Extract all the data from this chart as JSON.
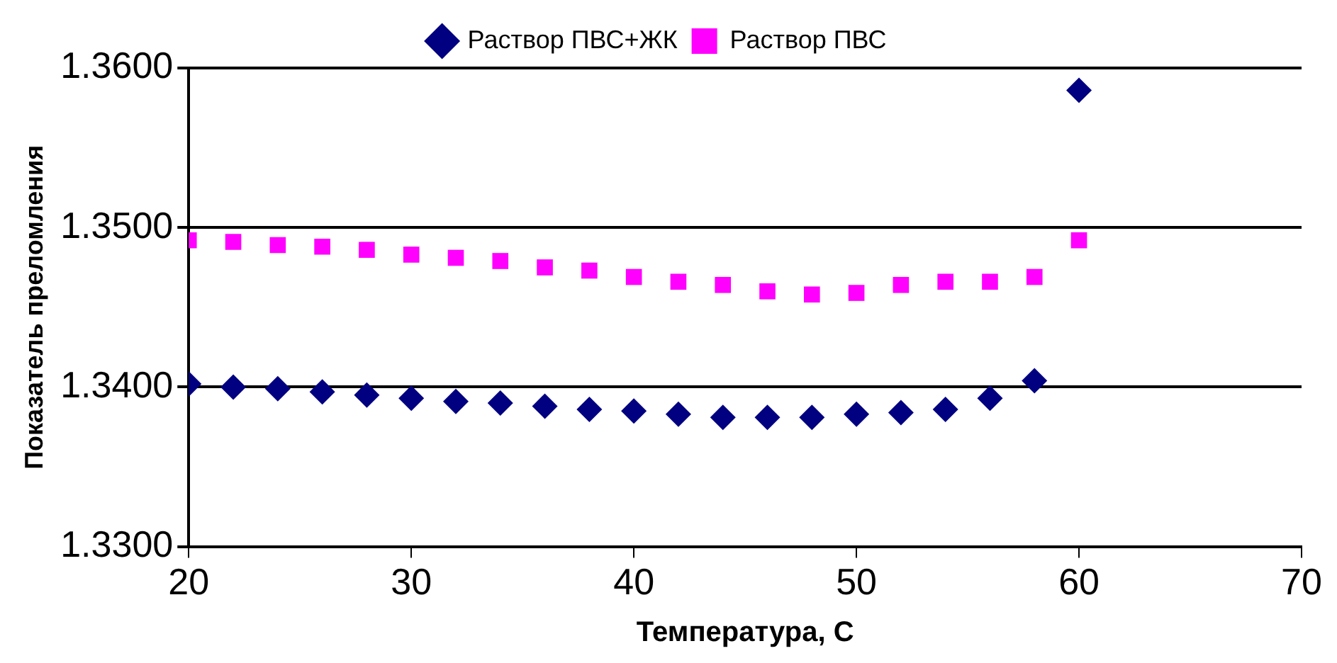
{
  "chart_data": {
    "type": "scatter",
    "xlabel": "Температура, С",
    "ylabel": "Показатель преломления",
    "x": [
      20,
      22,
      24,
      26,
      28,
      30,
      32,
      34,
      36,
      38,
      40,
      42,
      44,
      46,
      48,
      50,
      52,
      54,
      56,
      58,
      60
    ],
    "series": [
      {
        "name": "Раствор ПВС+ЖК",
        "color": "#000080",
        "marker": "diamond",
        "values": [
          1.3402,
          1.34,
          1.3399,
          1.3397,
          1.3395,
          1.3393,
          1.3391,
          1.339,
          1.3388,
          1.3386,
          1.3385,
          1.3383,
          1.3381,
          1.3381,
          1.3381,
          1.3383,
          1.3384,
          1.3386,
          1.3393,
          1.3404,
          1.3586
        ]
      },
      {
        "name": "Раствор ПВС",
        "color": "#ff00ff",
        "marker": "square",
        "values": [
          1.3492,
          1.3491,
          1.3489,
          1.3488,
          1.3486,
          1.3483,
          1.3481,
          1.3479,
          1.3475,
          1.3473,
          1.3469,
          1.3466,
          1.3464,
          1.346,
          1.3458,
          1.3459,
          1.3464,
          1.3466,
          1.3466,
          1.3469,
          1.3492
        ]
      }
    ],
    "xlim": [
      20,
      70
    ],
    "xticks": [
      20,
      30,
      40,
      50,
      60,
      70
    ],
    "ylim": [
      1.33,
      1.36
    ],
    "yticks": [
      {
        "value": 1.33,
        "label": "1.3300"
      },
      {
        "value": 1.34,
        "label": "1.3400"
      },
      {
        "value": 1.35,
        "label": "1.3500"
      },
      {
        "value": 1.36,
        "label": "1.3600"
      }
    ],
    "grid": "y",
    "legend": "top"
  }
}
